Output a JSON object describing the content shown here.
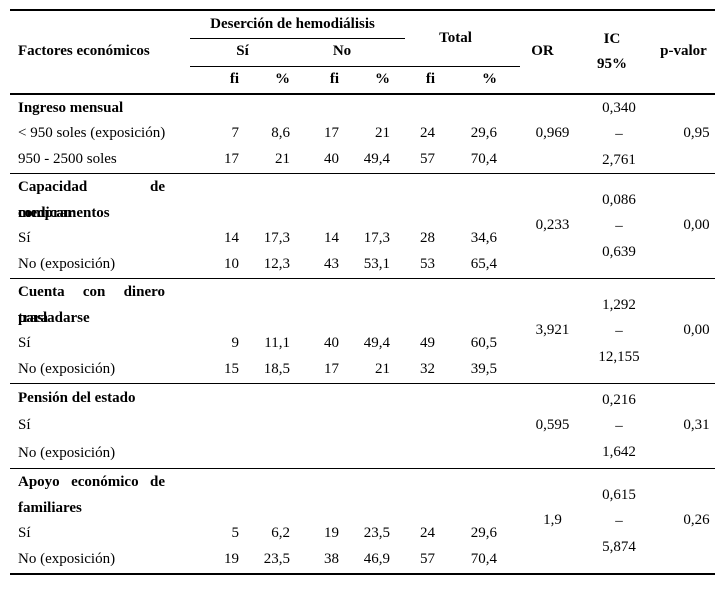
{
  "table": {
    "header": {
      "factores": "Factores económicos",
      "desercion": "Deserción de hemodiálisis",
      "si": "Sí",
      "no": "No",
      "total": "Total",
      "fi": "fi",
      "pct": "%",
      "or": "OR",
      "ic_line1": "IC",
      "ic_line2": "95%",
      "p": "p-valor"
    },
    "sections": [
      {
        "title_lines": [
          "Ingreso mensual"
        ],
        "rows": [
          {
            "label": "< 950 soles (exposición)",
            "si_fi": "7",
            "si_pct": "8,6",
            "no_fi": "17",
            "no_pct": "21",
            "tot_fi": "24",
            "tot_pct": "29,6"
          },
          {
            "label": "950 - 2500 soles",
            "si_fi": "17",
            "si_pct": "21",
            "no_fi": "40",
            "no_pct": "49,4",
            "tot_fi": "57",
            "tot_pct": "70,4"
          }
        ],
        "or": "0,969",
        "ic_low": "0,340",
        "ic_sep": "–",
        "ic_high": "2,761",
        "p": "0,95"
      },
      {
        "title_lines": [
          "Capacidad de comprar",
          "medicamentos"
        ],
        "rows": [
          {
            "label": "Sí",
            "si_fi": "14",
            "si_pct": "17,3",
            "no_fi": "14",
            "no_pct": "17,3",
            "tot_fi": "28",
            "tot_pct": "34,6"
          },
          {
            "label": "No (exposición)",
            "si_fi": "10",
            "si_pct": "12,3",
            "no_fi": "43",
            "no_pct": "53,1",
            "tot_fi": "53",
            "tot_pct": "65,4"
          }
        ],
        "or": "0,233",
        "ic_low": "0,086",
        "ic_sep": "–",
        "ic_high": "0,639",
        "p": "0,00"
      },
      {
        "title_lines": [
          "Cuenta con dinero para",
          "trasladarse"
        ],
        "rows": [
          {
            "label": "Sí",
            "si_fi": "9",
            "si_pct": "11,1",
            "no_fi": "40",
            "no_pct": "49,4",
            "tot_fi": "49",
            "tot_pct": "60,5"
          },
          {
            "label": "No (exposición)",
            "si_fi": "15",
            "si_pct": "18,5",
            "no_fi": "17",
            "no_pct": "21",
            "tot_fi": "32",
            "tot_pct": "39,5"
          }
        ],
        "or": "3,921",
        "ic_low": "1,292",
        "ic_sep": "–",
        "ic_high": "12,155",
        "p": "0,00"
      },
      {
        "title_lines": [
          "Pensión del estado"
        ],
        "rows": [
          {
            "label": "Sí",
            "si_fi": "",
            "si_pct": "",
            "no_fi": "",
            "no_pct": "",
            "tot_fi": "",
            "tot_pct": ""
          },
          {
            "label": "No (exposición)",
            "si_fi": "",
            "si_pct": "",
            "no_fi": "",
            "no_pct": "",
            "tot_fi": "",
            "tot_pct": ""
          }
        ],
        "or": "0,595",
        "ic_low": "0,216",
        "ic_sep": "–",
        "ic_high": "1,642",
        "p": "0,31"
      },
      {
        "title_lines": [
          "Apoyo económico de",
          "familiares"
        ],
        "rows": [
          {
            "label": "Sí",
            "si_fi": "5",
            "si_pct": "6,2",
            "no_fi": "19",
            "no_pct": "23,5",
            "tot_fi": "24",
            "tot_pct": "29,6"
          },
          {
            "label": "No (exposición)",
            "si_fi": "19",
            "si_pct": "23,5",
            "no_fi": "38",
            "no_pct": "46,9",
            "tot_fi": "57",
            "tot_pct": "70,4"
          }
        ],
        "or": "1,9",
        "ic_low": "0,615",
        "ic_sep": "–",
        "ic_high": "5,874",
        "p": "0,26"
      }
    ]
  }
}
